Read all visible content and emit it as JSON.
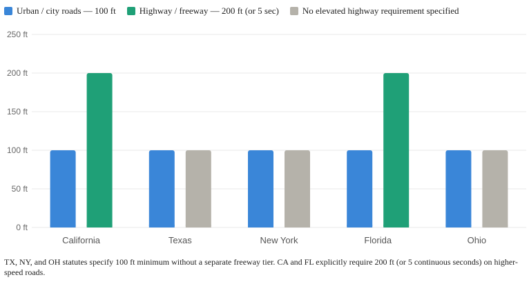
{
  "colors": {
    "urban": "#3a86d8",
    "highway": "#1fa077",
    "none": "#b5b2aa",
    "grid": "#e8e8e8",
    "axis_text": "#666666"
  },
  "legend": [
    {
      "label": "Urban / city roads — 100 ft",
      "color": "#3a86d8"
    },
    {
      "label": "Highway / freeway — 200 ft (or 5 sec)",
      "color": "#1fa077"
    },
    {
      "label": "No elevated highway requirement specified",
      "color": "#b5b2aa"
    }
  ],
  "chart_data": {
    "type": "bar",
    "categories": [
      "California",
      "Texas",
      "New York",
      "Florida",
      "Ohio"
    ],
    "series": [
      {
        "name": "Urban / city roads — 100 ft",
        "values": [
          100,
          100,
          100,
          100,
          100
        ]
      },
      {
        "name": "Highway / freeway — 200 ft (or 5 sec)",
        "values": [
          200,
          100,
          100,
          200,
          100
        ]
      }
    ],
    "second_bar_kind": [
      "highway",
      "none",
      "none",
      "highway",
      "none"
    ],
    "ylim": [
      0,
      250
    ],
    "yticks": [
      "0 ft",
      "50 ft",
      "100 ft",
      "150 ft",
      "200 ft",
      "250 ft"
    ],
    "grid": true,
    "legend_position": "top-left"
  },
  "footnote": "TX, NY, and OH statutes specify 100 ft minimum without a separate freeway tier. CA and FL explicitly require 200 ft (or 5 continuous seconds) on higher-speed roads."
}
